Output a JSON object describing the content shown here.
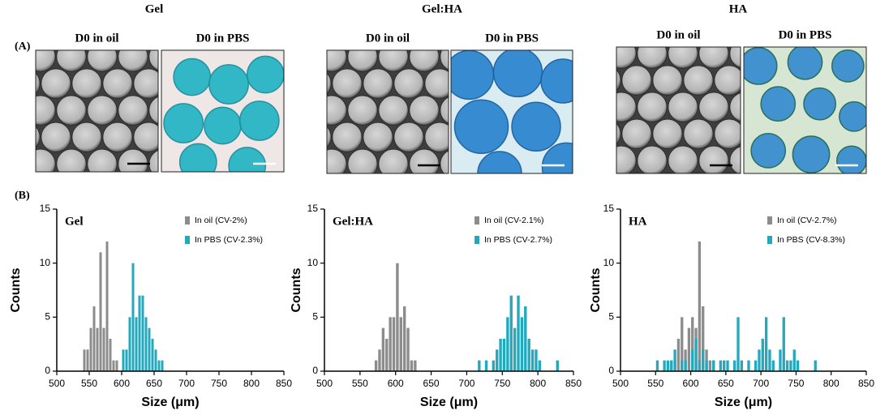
{
  "header": {
    "panel_a": "(A)",
    "panel_b": "(B)",
    "groups": [
      {
        "title": "Gel",
        "captions": [
          "D0 in oil",
          "D0 in PBS"
        ]
      },
      {
        "title": "Gel:HA",
        "captions": [
          "D0 in oil",
          "D0 in PBS"
        ]
      },
      {
        "title": "HA",
        "captions": [
          "D0 in oil",
          "D0 in PBS"
        ]
      }
    ]
  },
  "chart_data": [
    {
      "type": "histogram",
      "title": "Gel",
      "xlabel": "Size (μm)",
      "ylabel": "Counts",
      "xlim": [
        500,
        850
      ],
      "xticks": [
        500,
        550,
        600,
        650,
        700,
        750,
        800,
        850
      ],
      "ylim": [
        0,
        15
      ],
      "yticks": [
        0,
        5,
        10,
        15
      ],
      "legend": "upper right",
      "series": [
        {
          "name": "In oil (CV-2%)",
          "color": "#8c8c8c",
          "bins": [
            540,
            545,
            550,
            555,
            560,
            565,
            570,
            575,
            580,
            585,
            590,
            595
          ],
          "values": [
            2,
            2,
            4,
            6,
            4,
            11,
            4,
            12,
            3,
            1,
            1
          ]
        },
        {
          "name": "In PBS (CV-2.3%)",
          "color": "#23a9bd",
          "bins": [
            600,
            605,
            610,
            615,
            620,
            625,
            630,
            635,
            640,
            645,
            650,
            655,
            660,
            665
          ],
          "values": [
            2,
            2,
            5,
            10,
            5,
            7,
            7,
            5,
            4,
            3,
            2,
            1,
            1
          ]
        }
      ]
    },
    {
      "type": "histogram",
      "title": "Gel:HA",
      "xlabel": "Size (μm)",
      "ylabel": "Counts",
      "xlim": [
        500,
        850
      ],
      "xticks": [
        500,
        550,
        600,
        650,
        700,
        750,
        800,
        850
      ],
      "ylim": [
        0,
        15
      ],
      "yticks": [
        0,
        5,
        10,
        15
      ],
      "legend": "upper right",
      "series": [
        {
          "name": "In oil (CV-2.1%)",
          "color": "#8c8c8c",
          "bins": [
            570,
            575,
            580,
            585,
            590,
            595,
            600,
            605,
            610,
            615,
            620,
            625,
            630
          ],
          "values": [
            1,
            2,
            4,
            3,
            5,
            5,
            10,
            5,
            6,
            4,
            1,
            1
          ]
        },
        {
          "name": "In PBS (CV-2.7%)",
          "color": "#23a9bd",
          "bins": [
            715,
            720,
            725,
            730,
            735,
            740,
            745,
            750,
            755,
            760,
            765,
            770,
            775,
            780,
            785,
            790,
            795,
            800,
            805,
            810,
            815,
            820,
            825,
            830
          ],
          "values": [
            1,
            0,
            1,
            0,
            1,
            2,
            3,
            3,
            5,
            7,
            4,
            7,
            5,
            6,
            3,
            2,
            2,
            1,
            0,
            0,
            0,
            0,
            1
          ]
        }
      ]
    },
    {
      "type": "histogram",
      "title": "HA",
      "xlabel": "Size (μm)",
      "ylabel": "Counts",
      "xlim": [
        500,
        850
      ],
      "xticks": [
        500,
        550,
        600,
        650,
        700,
        750,
        800,
        850
      ],
      "ylim": [
        0,
        15
      ],
      "yticks": [
        0,
        5,
        10,
        15
      ],
      "legend": "upper right",
      "series": [
        {
          "name": "In oil (CV-2.7%)",
          "color": "#8c8c8c",
          "bins": [
            570,
            575,
            580,
            585,
            590,
            595,
            600,
            605,
            610,
            615,
            620,
            625,
            630,
            635
          ],
          "values": [
            1,
            1,
            3,
            5,
            2,
            4,
            5,
            4,
            12,
            6,
            2,
            1,
            1
          ]
        },
        {
          "name": "In PBS (CV-8.3%)",
          "color": "#23a9bd",
          "bins": [
            550,
            555,
            560,
            565,
            570,
            575,
            580,
            585,
            590,
            595,
            600,
            605,
            610,
            615,
            620,
            625,
            630,
            635,
            640,
            645,
            650,
            655,
            660,
            665,
            670,
            675,
            680,
            685,
            690,
            695,
            700,
            705,
            710,
            715,
            720,
            725,
            730,
            735,
            740,
            745,
            750,
            755,
            760,
            765,
            770,
            775,
            780
          ],
          "values": [
            1,
            0,
            1,
            1,
            1,
            2,
            0,
            1,
            1,
            0,
            2,
            3,
            1,
            2,
            1,
            0,
            1,
            0,
            1,
            1,
            1,
            0,
            1,
            5,
            1,
            0,
            1,
            0,
            1,
            2,
            3,
            5,
            2,
            1,
            0,
            2,
            5,
            1,
            1,
            2,
            1,
            0,
            0,
            0,
            0,
            1
          ]
        }
      ]
    }
  ]
}
